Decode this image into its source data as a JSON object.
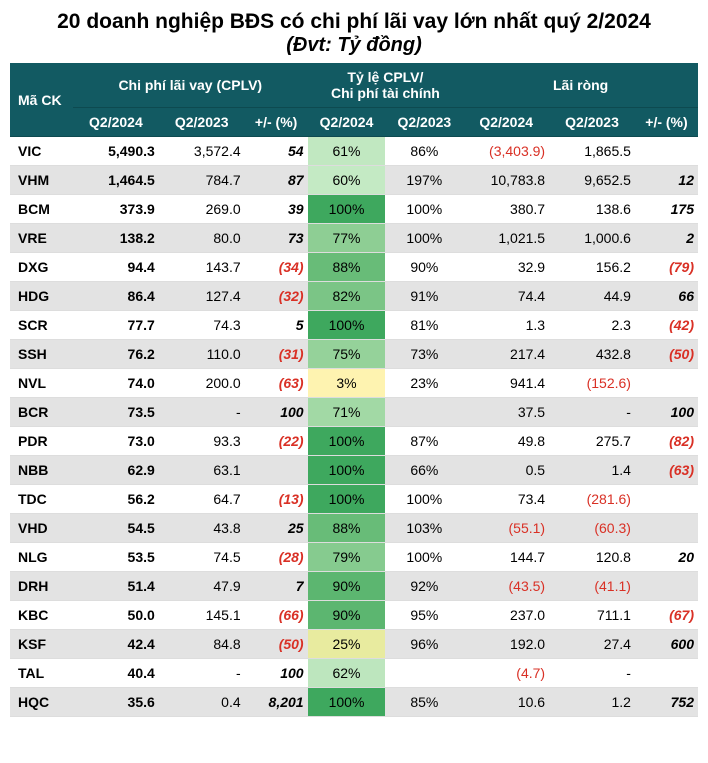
{
  "title": "20 doanh nghiệp BĐS có chi phí lãi vay lớn nhất quý 2/2024",
  "subtitle": "(Đvt: Tỷ đồng)",
  "headers": {
    "mack": "Mã CK",
    "cplv": "Chi phí lãi vay (CPLV)",
    "ratio": "Tỷ lệ CPLV/\nChi phí tài chính",
    "lairong": "Lãi ròng",
    "q224": "Q2/2024",
    "q223": "Q2/2023",
    "pct": "+/- (%)"
  },
  "ratio_colors": {
    "100": "#3ea85e",
    "90": "#5cb670",
    "88": "#68bc78",
    "82": "#7bc586",
    "79": "#86cb8f",
    "77": "#8ece94",
    "75": "#95d29a",
    "71": "#a2d9a5",
    "62": "#bde6be",
    "61": "#c1e8c1",
    "60": "#c4eac4",
    "25": "#e8eb9f",
    "3": "#fef3b0"
  },
  "rows": [
    {
      "mack": "VIC",
      "cplv24": "5,490.3",
      "cplv23": "3,572.4",
      "cplv_pct": "54",
      "cplv_pct_neg": false,
      "ratio24": "61%",
      "ratio24_key": "61",
      "ratio23": "86%",
      "lr24": "(3,403.9)",
      "lr24_neg": true,
      "lr23": "1,865.5",
      "lr23_neg": false,
      "lr_pct": "",
      "lr_pct_neg": false
    },
    {
      "mack": "VHM",
      "cplv24": "1,464.5",
      "cplv23": "784.7",
      "cplv_pct": "87",
      "cplv_pct_neg": false,
      "ratio24": "60%",
      "ratio24_key": "60",
      "ratio23": "197%",
      "lr24": "10,783.8",
      "lr24_neg": false,
      "lr23": "9,652.5",
      "lr23_neg": false,
      "lr_pct": "12",
      "lr_pct_neg": false
    },
    {
      "mack": "BCM",
      "cplv24": "373.9",
      "cplv23": "269.0",
      "cplv_pct": "39",
      "cplv_pct_neg": false,
      "ratio24": "100%",
      "ratio24_key": "100",
      "ratio23": "100%",
      "lr24": "380.7",
      "lr24_neg": false,
      "lr23": "138.6",
      "lr23_neg": false,
      "lr_pct": "175",
      "lr_pct_neg": false
    },
    {
      "mack": "VRE",
      "cplv24": "138.2",
      "cplv23": "80.0",
      "cplv_pct": "73",
      "cplv_pct_neg": false,
      "ratio24": "77%",
      "ratio24_key": "77",
      "ratio23": "100%",
      "lr24": "1,021.5",
      "lr24_neg": false,
      "lr23": "1,000.6",
      "lr23_neg": false,
      "lr_pct": "2",
      "lr_pct_neg": false
    },
    {
      "mack": "DXG",
      "cplv24": "94.4",
      "cplv23": "143.7",
      "cplv_pct": "(34)",
      "cplv_pct_neg": true,
      "ratio24": "88%",
      "ratio24_key": "88",
      "ratio23": "90%",
      "lr24": "32.9",
      "lr24_neg": false,
      "lr23": "156.2",
      "lr23_neg": false,
      "lr_pct": "(79)",
      "lr_pct_neg": true
    },
    {
      "mack": "HDG",
      "cplv24": "86.4",
      "cplv23": "127.4",
      "cplv_pct": "(32)",
      "cplv_pct_neg": true,
      "ratio24": "82%",
      "ratio24_key": "82",
      "ratio23": "91%",
      "lr24": "74.4",
      "lr24_neg": false,
      "lr23": "44.9",
      "lr23_neg": false,
      "lr_pct": "66",
      "lr_pct_neg": false
    },
    {
      "mack": "SCR",
      "cplv24": "77.7",
      "cplv23": "74.3",
      "cplv_pct": "5",
      "cplv_pct_neg": false,
      "ratio24": "100%",
      "ratio24_key": "100",
      "ratio23": "81%",
      "lr24": "1.3",
      "lr24_neg": false,
      "lr23": "2.3",
      "lr23_neg": false,
      "lr_pct": "(42)",
      "lr_pct_neg": true
    },
    {
      "mack": "SSH",
      "cplv24": "76.2",
      "cplv23": "110.0",
      "cplv_pct": "(31)",
      "cplv_pct_neg": true,
      "ratio24": "75%",
      "ratio24_key": "75",
      "ratio23": "73%",
      "lr24": "217.4",
      "lr24_neg": false,
      "lr23": "432.8",
      "lr23_neg": false,
      "lr_pct": "(50)",
      "lr_pct_neg": true
    },
    {
      "mack": "NVL",
      "cplv24": "74.0",
      "cplv23": "200.0",
      "cplv_pct": "(63)",
      "cplv_pct_neg": true,
      "ratio24": "3%",
      "ratio24_key": "3",
      "ratio23": "23%",
      "lr24": "941.4",
      "lr24_neg": false,
      "lr23": "(152.6)",
      "lr23_neg": true,
      "lr_pct": "",
      "lr_pct_neg": false
    },
    {
      "mack": "BCR",
      "cplv24": "73.5",
      "cplv23": "-",
      "cplv_pct": "100",
      "cplv_pct_neg": false,
      "ratio24": "71%",
      "ratio24_key": "71",
      "ratio23": "",
      "lr24": "37.5",
      "lr24_neg": false,
      "lr23": "-",
      "lr23_neg": false,
      "lr_pct": "100",
      "lr_pct_neg": false
    },
    {
      "mack": "PDR",
      "cplv24": "73.0",
      "cplv23": "93.3",
      "cplv_pct": "(22)",
      "cplv_pct_neg": true,
      "ratio24": "100%",
      "ratio24_key": "100",
      "ratio23": "87%",
      "lr24": "49.8",
      "lr24_neg": false,
      "lr23": "275.7",
      "lr23_neg": false,
      "lr_pct": "(82)",
      "lr_pct_neg": true
    },
    {
      "mack": "NBB",
      "cplv24": "62.9",
      "cplv23": "63.1",
      "cplv_pct": "",
      "cplv_pct_neg": false,
      "ratio24": "100%",
      "ratio24_key": "100",
      "ratio23": "66%",
      "lr24": "0.5",
      "lr24_neg": false,
      "lr23": "1.4",
      "lr23_neg": false,
      "lr_pct": "(63)",
      "lr_pct_neg": true
    },
    {
      "mack": "TDC",
      "cplv24": "56.2",
      "cplv23": "64.7",
      "cplv_pct": "(13)",
      "cplv_pct_neg": true,
      "ratio24": "100%",
      "ratio24_key": "100",
      "ratio23": "100%",
      "lr24": "73.4",
      "lr24_neg": false,
      "lr23": "(281.6)",
      "lr23_neg": true,
      "lr_pct": "",
      "lr_pct_neg": false
    },
    {
      "mack": "VHD",
      "cplv24": "54.5",
      "cplv23": "43.8",
      "cplv_pct": "25",
      "cplv_pct_neg": false,
      "ratio24": "88%",
      "ratio24_key": "88",
      "ratio23": "103%",
      "lr24": "(55.1)",
      "lr24_neg": true,
      "lr23": "(60.3)",
      "lr23_neg": true,
      "lr_pct": "",
      "lr_pct_neg": false
    },
    {
      "mack": "NLG",
      "cplv24": "53.5",
      "cplv23": "74.5",
      "cplv_pct": "(28)",
      "cplv_pct_neg": true,
      "ratio24": "79%",
      "ratio24_key": "79",
      "ratio23": "100%",
      "lr24": "144.7",
      "lr24_neg": false,
      "lr23": "120.8",
      "lr23_neg": false,
      "lr_pct": "20",
      "lr_pct_neg": false
    },
    {
      "mack": "DRH",
      "cplv24": "51.4",
      "cplv23": "47.9",
      "cplv_pct": "7",
      "cplv_pct_neg": false,
      "ratio24": "90%",
      "ratio24_key": "90",
      "ratio23": "92%",
      "lr24": "(43.5)",
      "lr24_neg": true,
      "lr23": "(41.1)",
      "lr23_neg": true,
      "lr_pct": "",
      "lr_pct_neg": false
    },
    {
      "mack": "KBC",
      "cplv24": "50.0",
      "cplv23": "145.1",
      "cplv_pct": "(66)",
      "cplv_pct_neg": true,
      "ratio24": "90%",
      "ratio24_key": "90",
      "ratio23": "95%",
      "lr24": "237.0",
      "lr24_neg": false,
      "lr23": "711.1",
      "lr23_neg": false,
      "lr_pct": "(67)",
      "lr_pct_neg": true
    },
    {
      "mack": "KSF",
      "cplv24": "42.4",
      "cplv23": "84.8",
      "cplv_pct": "(50)",
      "cplv_pct_neg": true,
      "ratio24": "25%",
      "ratio24_key": "25",
      "ratio23": "96%",
      "lr24": "192.0",
      "lr24_neg": false,
      "lr23": "27.4",
      "lr23_neg": false,
      "lr_pct": "600",
      "lr_pct_neg": false
    },
    {
      "mack": "TAL",
      "cplv24": "40.4",
      "cplv23": "-",
      "cplv_pct": "100",
      "cplv_pct_neg": false,
      "ratio24": "62%",
      "ratio24_key": "62",
      "ratio23": "",
      "lr24": "(4.7)",
      "lr24_neg": true,
      "lr23": "-",
      "lr23_neg": false,
      "lr_pct": "",
      "lr_pct_neg": false
    },
    {
      "mack": "HQC",
      "cplv24": "35.6",
      "cplv23": "0.4",
      "cplv_pct": "8,201",
      "cplv_pct_neg": false,
      "ratio24": "100%",
      "ratio24_key": "100",
      "ratio23": "85%",
      "lr24": "10.6",
      "lr24_neg": false,
      "lr23": "1.2",
      "lr23_neg": false,
      "lr_pct": "752",
      "lr_pct_neg": false
    }
  ]
}
